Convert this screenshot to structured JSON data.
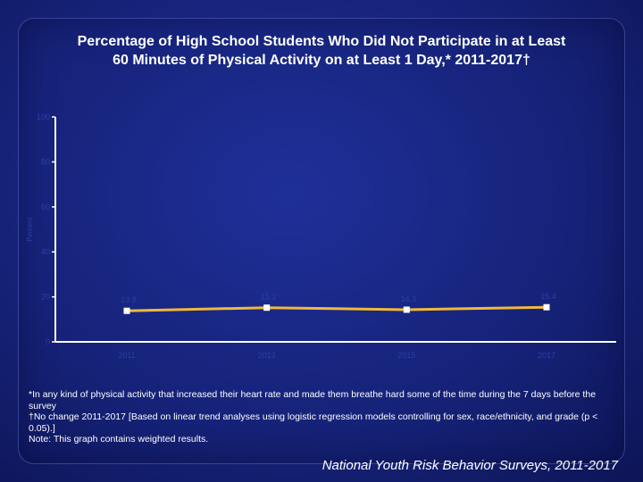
{
  "title": {
    "line1": "Percentage of High School Students Who Did Not Participate in at Least",
    "line2": "60 Minutes of Physical Activity on at Least 1 Day,* 2011-2017†"
  },
  "footnotes": [
    "*In any kind of physical activity that increased their heart rate and made them breathe hard some of the time during the 7 days before the survey",
    "†No change 2011-2017 [Based on linear trend analyses using logistic regression models controlling for sex, race/ethnicity, and grade (p < 0.05).]",
    "Note: This graph contains weighted results."
  ],
  "source": "National Youth Risk Behavior Surveys, 2011-2017",
  "colors": {
    "line": "#f0b93a",
    "marker": "#ffffff",
    "axis": "#ffffff",
    "label": "#2a3fa6"
  },
  "chart_data": {
    "type": "line",
    "ylabel": "Percent",
    "ylim": [
      0,
      100
    ],
    "yticks": [
      "0",
      "20",
      "40",
      "60",
      "80",
      "100"
    ],
    "categories": [
      "2011",
      "2013",
      "2015",
      "2017"
    ],
    "series": [
      {
        "values": [
          13.8,
          15.2,
          14.3,
          15.4
        ],
        "labels": [
          "13.8",
          "15.2",
          "14.3",
          "15.4"
        ]
      }
    ],
    "grid": false
  }
}
